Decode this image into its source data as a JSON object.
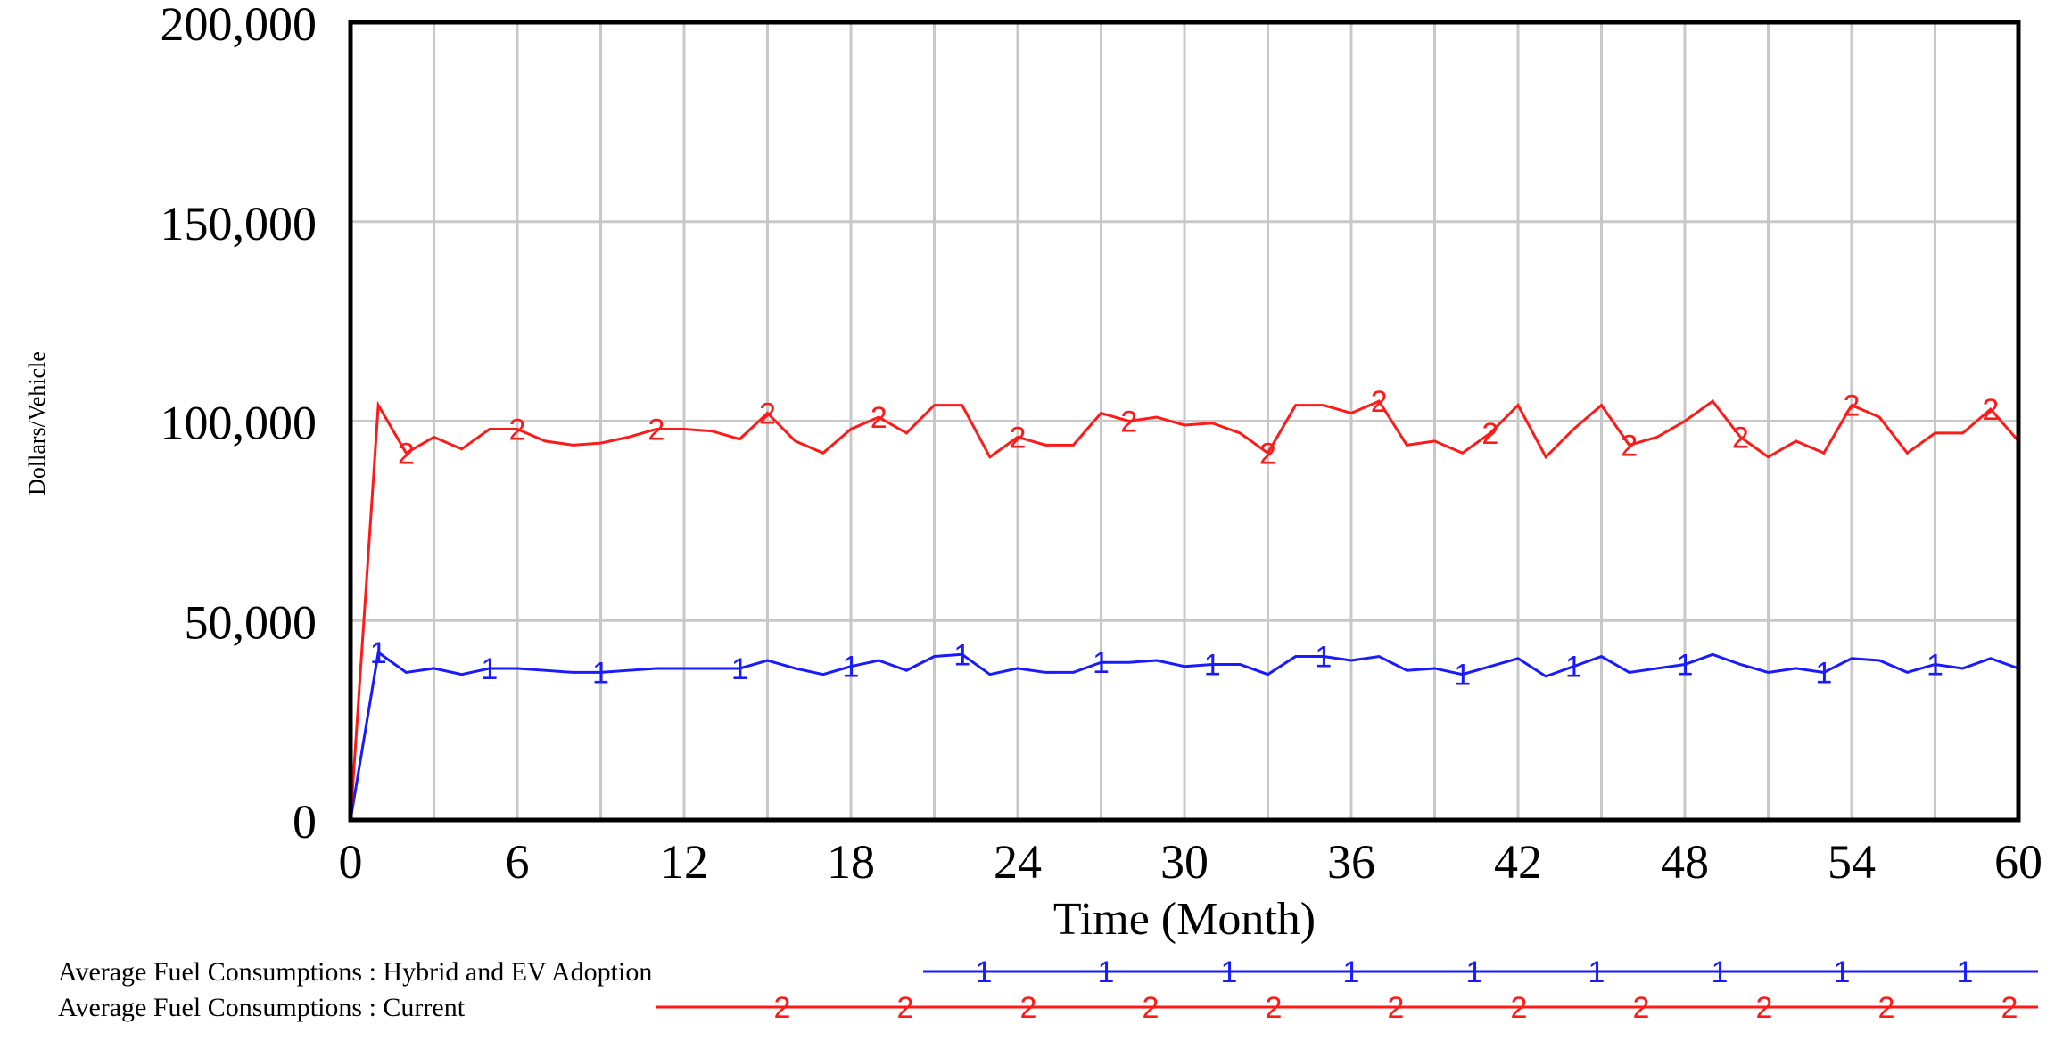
{
  "chart_data": {
    "type": "line",
    "title": "",
    "xlabel": "Time (Month)",
    "ylabel": "Dollars/Vehicle",
    "xlim": [
      0,
      60
    ],
    "ylim": [
      0,
      200000
    ],
    "x_ticks": [
      "0",
      "6",
      "12",
      "18",
      "24",
      "30",
      "36",
      "42",
      "48",
      "54",
      "60"
    ],
    "y_ticks": [
      "0",
      "50,000",
      "100,000",
      "150,000",
      "200,000"
    ],
    "grid": true,
    "colors": {
      "series1": "#1a1aff",
      "series2": "#ff1a1a",
      "grid": "#c8c8c8",
      "axis": "#000000"
    },
    "series": [
      {
        "name": "Average Fuel Consumptions : Hybrid and EV Adoption",
        "marker": "1",
        "color": "#1a1aff",
        "x": [
          0,
          1,
          2,
          3,
          4,
          5,
          6,
          7,
          8,
          9,
          10,
          11,
          12,
          13,
          14,
          15,
          16,
          17,
          18,
          19,
          20,
          21,
          22,
          23,
          24,
          25,
          26,
          27,
          28,
          29,
          30,
          31,
          32,
          33,
          34,
          35,
          36,
          37,
          38,
          39,
          40,
          41,
          42,
          43,
          44,
          45,
          46,
          47,
          48,
          49,
          50,
          51,
          52,
          53,
          54,
          55,
          56,
          57,
          58,
          59,
          60
        ],
        "values": [
          0,
          42000,
          37000,
          38000,
          36500,
          38000,
          38000,
          37500,
          37000,
          37000,
          37500,
          38000,
          38000,
          38000,
          38000,
          40000,
          38000,
          36500,
          38500,
          40000,
          37500,
          41000,
          41500,
          36500,
          38000,
          37000,
          37000,
          39500,
          39500,
          40000,
          38500,
          39000,
          39000,
          36500,
          41000,
          41000,
          40000,
          41000,
          37500,
          38000,
          36500,
          38500,
          40500,
          36000,
          38500,
          41000,
          37000,
          38000,
          39000,
          41500,
          39000,
          37000,
          38000,
          37000,
          40500,
          40000,
          37000,
          39000,
          38000,
          40500,
          38000
        ],
        "marker_x": [
          1,
          5,
          9,
          14,
          18,
          22,
          27,
          31,
          35,
          40,
          44,
          48,
          53,
          57
        ]
      },
      {
        "name": "Average Fuel Consumptions : Current",
        "marker": "2",
        "color": "#ff1a1a",
        "x": [
          0,
          1,
          2,
          3,
          4,
          5,
          6,
          7,
          8,
          9,
          10,
          11,
          12,
          13,
          14,
          15,
          16,
          17,
          18,
          19,
          20,
          21,
          22,
          23,
          24,
          25,
          26,
          27,
          28,
          29,
          30,
          31,
          32,
          33,
          34,
          35,
          36,
          37,
          38,
          39,
          40,
          41,
          42,
          43,
          44,
          45,
          46,
          47,
          48,
          49,
          50,
          51,
          52,
          53,
          54,
          55,
          56,
          57,
          58,
          59,
          60
        ],
        "values": [
          0,
          104000,
          92000,
          96000,
          93000,
          98000,
          98000,
          95000,
          94000,
          94500,
          96000,
          98000,
          98000,
          97500,
          95500,
          102000,
          95000,
          92000,
          98000,
          101000,
          97000,
          104000,
          104000,
          91000,
          96000,
          94000,
          94000,
          102000,
          100000,
          101000,
          99000,
          99500,
          97000,
          92000,
          104000,
          104000,
          102000,
          105000,
          94000,
          95000,
          92000,
          97000,
          104000,
          91000,
          98000,
          104000,
          94000,
          96000,
          100000,
          105000,
          96000,
          91000,
          95000,
          92000,
          104000,
          101000,
          92000,
          97000,
          97000,
          103000,
          95000
        ],
        "marker_x": [
          2,
          6,
          11,
          15,
          19,
          24,
          28,
          33,
          37,
          41,
          46,
          50,
          54,
          59
        ]
      }
    ],
    "legend": [
      {
        "label": "Average Fuel Consumptions : Hybrid and EV Adoption",
        "marker": "1",
        "color": "#1a1aff"
      },
      {
        "label": "Average Fuel Consumptions : Current",
        "marker": "2",
        "color": "#ff1a1a"
      }
    ]
  }
}
